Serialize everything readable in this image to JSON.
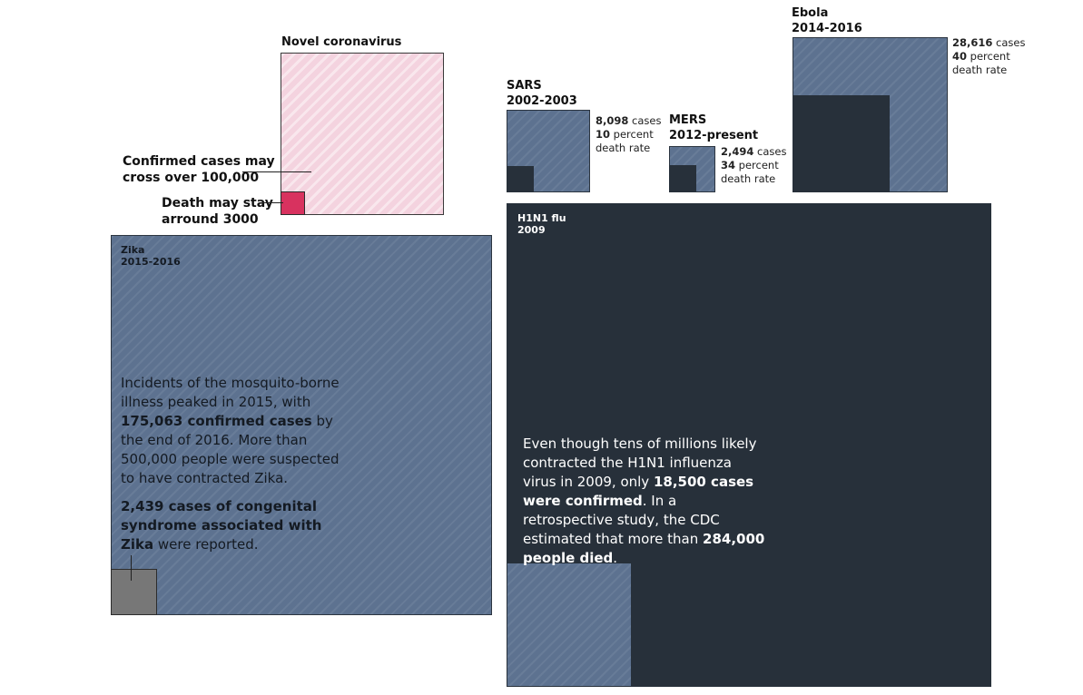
{
  "coronavirus": {
    "title": "Novel coronavirus",
    "confirmed_note": "Confirmed cases may cross over 100,000",
    "confirmed_note_line1": "Confirmed cases may",
    "confirmed_note_line2": "cross over 100,000",
    "death_note_line1": "Death may stay",
    "death_note_line2": "arround 3000"
  },
  "sars": {
    "title_line1": "SARS",
    "title_line2": "2002-2003",
    "cases": "8,098",
    "cases_label": "cases",
    "death_pct": "10",
    "death_label_1": "percent",
    "death_label_2": "death rate"
  },
  "mers": {
    "title_line1": "MERS",
    "title_line2": "2012-present",
    "cases": "2,494",
    "cases_label": "cases",
    "death_pct": "34",
    "death_label_1": "percent",
    "death_label_2": "death rate"
  },
  "ebola": {
    "title_line1": "Ebola",
    "title_line2": "2014-2016",
    "cases": "28,616",
    "cases_label": "cases",
    "death_pct": "40",
    "death_label_1": "percent",
    "death_label_2": "death rate"
  },
  "zika": {
    "title_line1": "Zika",
    "title_line2": "2015-2016",
    "p1_a": "Incidents of the mosquito-borne illness peaked in 2015, with ",
    "p1_b": "175,063 confirmed cases",
    "p1_c": " by the end of 2016. More than 500,000 people were suspected to have contracted Zika.",
    "p2_a": "2,439 cases of congenital syndrome associated with Zika",
    "p2_b": " were reported."
  },
  "h1n1": {
    "title_line1": "H1N1 flu",
    "title_line2": "2009",
    "p_a": "Even though tens of millions likely contracted the H1N1 influenza virus in 2009, only ",
    "p_b": "18,500 cases were confirmed",
    "p_c": ". In a retrospective study, the CDC estimated that more than ",
    "p_d": "284,000 people died",
    "p_e": "."
  },
  "colors": {
    "cases_blue": "#5d7290",
    "dark_navy": "#27303a",
    "corona_pink": "#f4d3df",
    "corona_death": "#d8325f",
    "zika_death": "#777777"
  }
}
